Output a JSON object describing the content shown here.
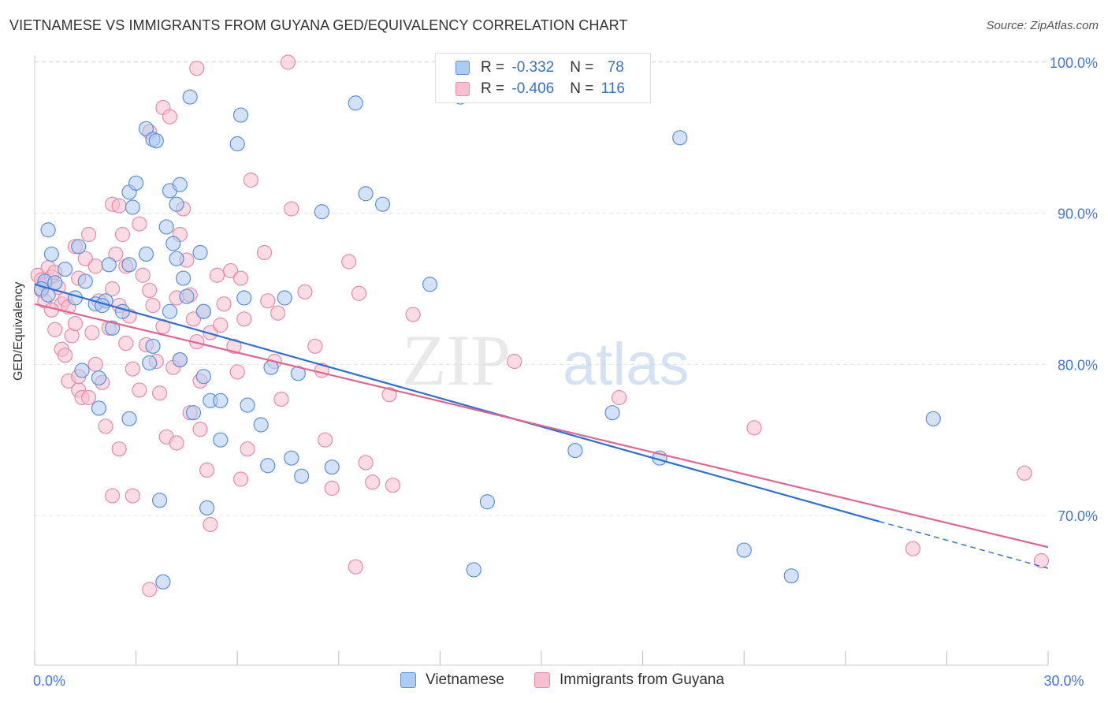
{
  "header": {
    "title": "VIETNAMESE VS IMMIGRANTS FROM GUYANA GED/EQUIVALENCY CORRELATION CHART",
    "source": "Source: ZipAtlas.com"
  },
  "legend": {
    "rows": [
      {
        "r_label": "R = ",
        "r_value": "-0.332",
        "n_label": "N = ",
        "n_value": "78"
      },
      {
        "r_label": "R = ",
        "r_value": "-0.406",
        "n_label": "N = ",
        "n_value": "116"
      }
    ]
  },
  "bottom_legend": [
    "Vietnamese",
    "Immigrants from Guyana"
  ],
  "watermark": {
    "zip": "ZIP",
    "atlas": "atlas"
  },
  "colors": {
    "vietnamese_fill": "#aecbf2",
    "vietnamese_stroke": "#5b8fd6",
    "vietnamese_line": "#2f6fcf",
    "guyana_fill": "#f7bfd0",
    "guyana_stroke": "#e58aa8",
    "guyana_line": "#e0668f",
    "tick_label": "#4477cc",
    "grid": "#e4e4e4"
  },
  "chart_data": {
    "type": "scatter",
    "title": "VIETNAMESE VS IMMIGRANTS FROM GUYANA GED/EQUIVALENCY CORRELATION CHART",
    "xlabel": "",
    "ylabel": "GED/Equivalency",
    "xlim": [
      0,
      30
    ],
    "ylim": [
      61,
      102
    ],
    "x_tick_labels": [
      {
        "x": 0,
        "label": "0.0%"
      },
      {
        "x": 30,
        "label": "30.0%"
      }
    ],
    "x_minor_ticks": [
      0,
      3,
      6,
      9,
      12,
      15,
      18,
      21,
      24,
      27,
      30
    ],
    "y_ticks": [
      {
        "y": 70,
        "label": "70.0%"
      },
      {
        "y": 80,
        "label": "80.0%"
      },
      {
        "y": 90,
        "label": "90.0%"
      },
      {
        "y": 100,
        "label": "100.0%"
      }
    ],
    "grid": true,
    "legend_position": "top-center",
    "series": [
      {
        "name": "Vietnamese",
        "r": -0.332,
        "n": 78,
        "trend": {
          "x0": 0,
          "y0": 85.3,
          "x1": 25.0,
          "y1": 69.6,
          "dash_to_x": 30,
          "dash_to_y": 66.5
        },
        "points": [
          [
            0.3,
            85.5
          ],
          [
            0.6,
            85.4
          ],
          [
            0.2,
            85.0
          ],
          [
            0.4,
            84.6
          ],
          [
            0.5,
            87.3
          ],
          [
            0.4,
            88.9
          ],
          [
            0.9,
            86.3
          ],
          [
            1.3,
            87.8
          ],
          [
            1.5,
            85.5
          ],
          [
            1.2,
            84.4
          ],
          [
            1.4,
            79.6
          ],
          [
            1.8,
            84.0
          ],
          [
            2.1,
            84.2
          ],
          [
            2.0,
            83.9
          ],
          [
            1.9,
            77.1
          ],
          [
            1.9,
            79.1
          ],
          [
            2.2,
            86.6
          ],
          [
            2.6,
            83.5
          ],
          [
            2.3,
            82.4
          ],
          [
            2.8,
            86.6
          ],
          [
            2.8,
            91.4
          ],
          [
            3.0,
            92.0
          ],
          [
            2.9,
            90.4
          ],
          [
            3.3,
            95.6
          ],
          [
            3.5,
            94.9
          ],
          [
            3.6,
            94.8
          ],
          [
            3.3,
            87.3
          ],
          [
            3.5,
            81.2
          ],
          [
            3.4,
            80.1
          ],
          [
            2.8,
            76.4
          ],
          [
            3.7,
            71.0
          ],
          [
            3.9,
            89.1
          ],
          [
            4.0,
            91.5
          ],
          [
            4.3,
            91.9
          ],
          [
            4.2,
            90.6
          ],
          [
            4.4,
            85.7
          ],
          [
            4.5,
            84.5
          ],
          [
            4.3,
            80.3
          ],
          [
            4.1,
            88.0
          ],
          [
            4.2,
            87.0
          ],
          [
            4.0,
            83.5
          ],
          [
            4.6,
            97.7
          ],
          [
            4.9,
            87.4
          ],
          [
            5.0,
            83.5
          ],
          [
            4.7,
            76.8
          ],
          [
            5.0,
            79.2
          ],
          [
            5.2,
            77.6
          ],
          [
            5.5,
            77.6
          ],
          [
            5.5,
            75.0
          ],
          [
            6.1,
            96.5
          ],
          [
            6.0,
            94.6
          ],
          [
            6.2,
            84.4
          ],
          [
            6.3,
            77.3
          ],
          [
            6.7,
            76.0
          ],
          [
            6.9,
            73.3
          ],
          [
            7.0,
            79.8
          ],
          [
            7.4,
            84.4
          ],
          [
            7.8,
            79.4
          ],
          [
            7.6,
            73.8
          ],
          [
            7.9,
            72.6
          ],
          [
            8.5,
            90.1
          ],
          [
            8.8,
            73.2
          ],
          [
            9.8,
            91.3
          ],
          [
            9.5,
            97.3
          ],
          [
            10.3,
            90.6
          ],
          [
            11.7,
            85.3
          ],
          [
            12.6,
            97.7
          ],
          [
            13.0,
            66.4
          ],
          [
            13.4,
            70.9
          ],
          [
            16.0,
            74.3
          ],
          [
            17.1,
            76.8
          ],
          [
            18.5,
            73.8
          ],
          [
            19.1,
            95.0
          ],
          [
            21.0,
            67.7
          ],
          [
            22.4,
            66.0
          ],
          [
            26.6,
            76.4
          ],
          [
            5.1,
            70.5
          ],
          [
            3.8,
            65.6
          ]
        ]
      },
      {
        "name": "Immigrants from Guyana",
        "r": -0.406,
        "n": 116,
        "trend": {
          "x0": 0,
          "y0": 84.0,
          "x1": 30,
          "y1": 67.9
        },
        "points": [
          [
            0.1,
            85.9
          ],
          [
            0.2,
            85.6
          ],
          [
            0.3,
            85.3
          ],
          [
            0.2,
            84.9
          ],
          [
            0.4,
            86.4
          ],
          [
            0.3,
            84.2
          ],
          [
            0.5,
            85.8
          ],
          [
            0.6,
            86.1
          ],
          [
            0.7,
            85.1
          ],
          [
            0.8,
            84.0
          ],
          [
            0.5,
            83.6
          ],
          [
            0.9,
            84.3
          ],
          [
            1.0,
            83.8
          ],
          [
            0.6,
            82.3
          ],
          [
            1.1,
            81.9
          ],
          [
            0.8,
            81.0
          ],
          [
            0.9,
            80.6
          ],
          [
            1.2,
            82.7
          ],
          [
            1.0,
            78.9
          ],
          [
            1.3,
            78.3
          ],
          [
            1.4,
            77.8
          ],
          [
            1.5,
            87.0
          ],
          [
            1.2,
            87.8
          ],
          [
            1.6,
            88.6
          ],
          [
            1.3,
            85.7
          ],
          [
            1.8,
            86.5
          ],
          [
            1.9,
            84.2
          ],
          [
            1.7,
            82.1
          ],
          [
            1.8,
            80.0
          ],
          [
            2.0,
            78.8
          ],
          [
            1.6,
            77.8
          ],
          [
            2.1,
            75.9
          ],
          [
            2.3,
            90.6
          ],
          [
            2.5,
            90.5
          ],
          [
            2.6,
            88.6
          ],
          [
            2.4,
            87.3
          ],
          [
            2.7,
            86.5
          ],
          [
            2.3,
            85.0
          ],
          [
            2.5,
            83.9
          ],
          [
            2.8,
            83.2
          ],
          [
            2.2,
            82.4
          ],
          [
            2.7,
            81.4
          ],
          [
            2.9,
            79.7
          ],
          [
            3.1,
            78.3
          ],
          [
            2.5,
            74.4
          ],
          [
            2.3,
            71.3
          ],
          [
            2.9,
            71.3
          ],
          [
            3.1,
            89.3
          ],
          [
            3.2,
            85.9
          ],
          [
            3.4,
            84.9
          ],
          [
            3.5,
            83.9
          ],
          [
            3.3,
            81.3
          ],
          [
            3.6,
            80.2
          ],
          [
            3.8,
            82.5
          ],
          [
            3.7,
            78.1
          ],
          [
            4.1,
            79.8
          ],
          [
            3.9,
            75.2
          ],
          [
            3.4,
            65.1
          ],
          [
            3.4,
            95.4
          ],
          [
            3.8,
            97.0
          ],
          [
            4.0,
            96.4
          ],
          [
            4.4,
            90.3
          ],
          [
            4.3,
            88.6
          ],
          [
            4.5,
            86.9
          ],
          [
            4.6,
            84.6
          ],
          [
            4.2,
            84.4
          ],
          [
            4.7,
            83.0
          ],
          [
            4.8,
            81.5
          ],
          [
            4.3,
            80.3
          ],
          [
            4.9,
            78.9
          ],
          [
            4.6,
            76.8
          ],
          [
            4.2,
            74.8
          ],
          [
            5.0,
            83.5
          ],
          [
            5.2,
            82.1
          ],
          [
            4.9,
            75.7
          ],
          [
            5.1,
            73.0
          ],
          [
            5.4,
            85.9
          ],
          [
            5.6,
            84.0
          ],
          [
            5.5,
            82.6
          ],
          [
            5.8,
            86.2
          ],
          [
            6.1,
            85.7
          ],
          [
            6.2,
            83.0
          ],
          [
            5.9,
            81.2
          ],
          [
            6.0,
            79.5
          ],
          [
            6.3,
            74.4
          ],
          [
            6.1,
            72.4
          ],
          [
            6.4,
            92.2
          ],
          [
            6.8,
            87.4
          ],
          [
            6.9,
            84.2
          ],
          [
            7.2,
            83.4
          ],
          [
            7.1,
            80.2
          ],
          [
            7.3,
            77.7
          ],
          [
            7.6,
            90.3
          ],
          [
            8.0,
            84.8
          ],
          [
            8.3,
            81.2
          ],
          [
            8.5,
            79.6
          ],
          [
            8.6,
            75.0
          ],
          [
            8.8,
            71.8
          ],
          [
            9.3,
            86.8
          ],
          [
            9.6,
            84.7
          ],
          [
            9.8,
            73.5
          ],
          [
            10.0,
            72.2
          ],
          [
            10.5,
            78.0
          ],
          [
            11.2,
            83.3
          ],
          [
            4.8,
            99.6
          ],
          [
            7.5,
            100.0
          ],
          [
            14.2,
            80.2
          ],
          [
            17.3,
            77.8
          ],
          [
            21.3,
            75.8
          ],
          [
            26.0,
            67.8
          ],
          [
            29.3,
            72.8
          ],
          [
            29.8,
            67.0
          ],
          [
            9.5,
            66.6
          ],
          [
            10.6,
            72.0
          ],
          [
            5.2,
            69.4
          ],
          [
            1.3,
            79.2
          ]
        ]
      }
    ]
  }
}
